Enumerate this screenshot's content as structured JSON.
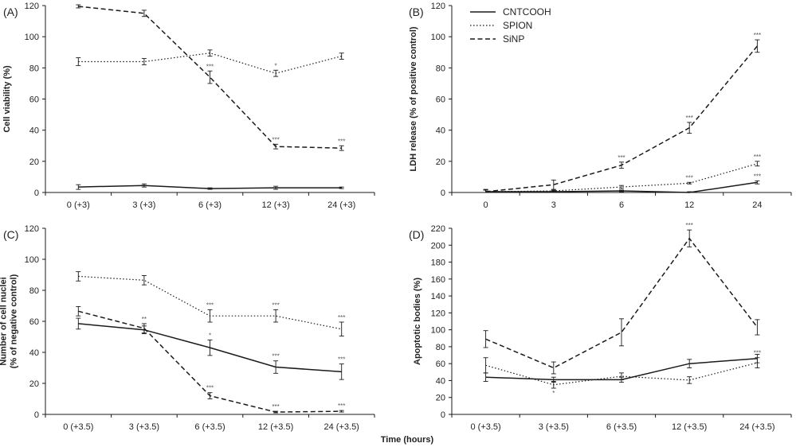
{
  "chart_data": [
    {
      "panel": "(A)",
      "type": "line",
      "ylabel": [
        "Cell viability (%)"
      ],
      "ylim": [
        0,
        120
      ],
      "yticks": [
        0,
        20,
        40,
        60,
        80,
        100,
        120
      ],
      "categories": [
        "0 (+3)",
        "3 (+3)",
        "6 (+3)",
        "12 (+3)",
        "24 (+3)"
      ],
      "series": [
        {
          "name": "CNTCOOH",
          "values": [
            3.5,
            4.5,
            2.5,
            3,
            3
          ],
          "errors": [
            1.5,
            1,
            0.5,
            1,
            0.5
          ],
          "sig": [
            "",
            "",
            "",
            "",
            ""
          ]
        },
        {
          "name": "SPION",
          "values": [
            84,
            84,
            89.5,
            76.5,
            87.5
          ],
          "errors": [
            2.5,
            2,
            2,
            2,
            2
          ],
          "sig": [
            "",
            "",
            "",
            "*",
            ""
          ]
        },
        {
          "name": "SiNP",
          "values": [
            119.5,
            115,
            74,
            29.5,
            28.5
          ],
          "errors": [
            1,
            2,
            4,
            1.5,
            1.5
          ],
          "sig": [
            "",
            "",
            "***",
            "***",
            "***"
          ]
        }
      ]
    },
    {
      "panel": "(B)",
      "type": "line",
      "ylabel": [
        "LDH release (% of positive control)"
      ],
      "ylim": [
        0,
        120
      ],
      "yticks": [
        0,
        20,
        40,
        60,
        80,
        100,
        120
      ],
      "categories": [
        "0",
        "3",
        "6",
        "12",
        "24"
      ],
      "series": [
        {
          "name": "CNTCOOH",
          "values": [
            0.5,
            0.5,
            1,
            0,
            6.5
          ],
          "errors": [
            1,
            0.5,
            0.5,
            0.5,
            1
          ],
          "sig": [
            "",
            "",
            "",
            "",
            "***"
          ]
        },
        {
          "name": "SPION",
          "values": [
            0.5,
            1,
            3.5,
            6,
            18.5
          ],
          "errors": [
            1,
            0.5,
            1,
            0.5,
            1.5
          ],
          "sig": [
            "",
            "",
            "",
            "***",
            "***"
          ]
        },
        {
          "name": "SiNP",
          "values": [
            0.5,
            5,
            17.5,
            41.5,
            94
          ],
          "errors": [
            1.5,
            3,
            2,
            3.5,
            4
          ],
          "sig": [
            "",
            "",
            "***",
            "***",
            "***"
          ]
        }
      ]
    },
    {
      "panel": "(C)",
      "type": "line",
      "ylabel": [
        "Number of cell nuclei",
        "(% of negative control)"
      ],
      "ylim": [
        0,
        120
      ],
      "yticks": [
        0,
        20,
        40,
        60,
        80,
        100,
        120
      ],
      "categories": [
        "0 (+3.5)",
        "3 (+3.5)",
        "6 (+3.5)",
        "12 (+3.5)",
        "24 (+3.5)"
      ],
      "series": [
        {
          "name": "CNTCOOH",
          "values": [
            58.5,
            54.5,
            43,
            30.5,
            27.5
          ],
          "errors": [
            3.5,
            2.5,
            5,
            4,
            5
          ],
          "sig": [
            "",
            "",
            "*",
            "***",
            "***"
          ]
        },
        {
          "name": "SPION",
          "values": [
            89,
            86.5,
            63.5,
            63.5,
            55
          ],
          "errors": [
            3,
            3,
            4,
            4,
            4.5
          ],
          "sig": [
            "",
            "",
            "***",
            "***",
            "***"
          ]
        },
        {
          "name": "SiNP",
          "values": [
            66.5,
            55.5,
            12,
            1.5,
            2
          ],
          "errors": [
            3,
            3,
            2,
            0.5,
            0.5
          ],
          "sig": [
            "",
            "**",
            "***",
            "***",
            "***"
          ]
        }
      ]
    },
    {
      "panel": "(D)",
      "type": "line",
      "ylabel": [
        "Apoptotic bodies (%)"
      ],
      "ylim": [
        0,
        220
      ],
      "yticks": [
        0,
        20,
        40,
        60,
        80,
        100,
        120,
        140,
        160,
        180,
        200,
        220
      ],
      "categories": [
        "0 (+3.5)",
        "3 (+3.5)",
        "6 (+3.5)",
        "12 (+3.5)",
        "24 (+3.5)"
      ],
      "series": [
        {
          "name": "CNTCOOH",
          "values": [
            44,
            41,
            41,
            60,
            66
          ],
          "errors": [
            5,
            3,
            3,
            5,
            5
          ],
          "sig": [
            "",
            "",
            "",
            "",
            ""
          ]
        },
        {
          "name": "SPION",
          "values": [
            58,
            35,
            45,
            40.5,
            61
          ],
          "errors": [
            9,
            4,
            4,
            4,
            6
          ],
          "sig": [
            "",
            "*",
            "",
            "",
            "***"
          ]
        },
        {
          "name": "SiNP",
          "values": [
            89,
            55,
            97,
            208,
            103
          ],
          "errors": [
            10,
            7,
            16,
            10,
            9
          ],
          "sig": [
            "",
            "",
            "",
            "***",
            ""
          ]
        }
      ]
    }
  ],
  "legend": [
    {
      "name": "CNTCOOH",
      "style": "solid"
    },
    {
      "name": "SPION",
      "style": "dotted"
    },
    {
      "name": "SiNP",
      "style": "dashed"
    }
  ],
  "xlabel": "Time (hours)",
  "line_color": "#1a1a1a"
}
